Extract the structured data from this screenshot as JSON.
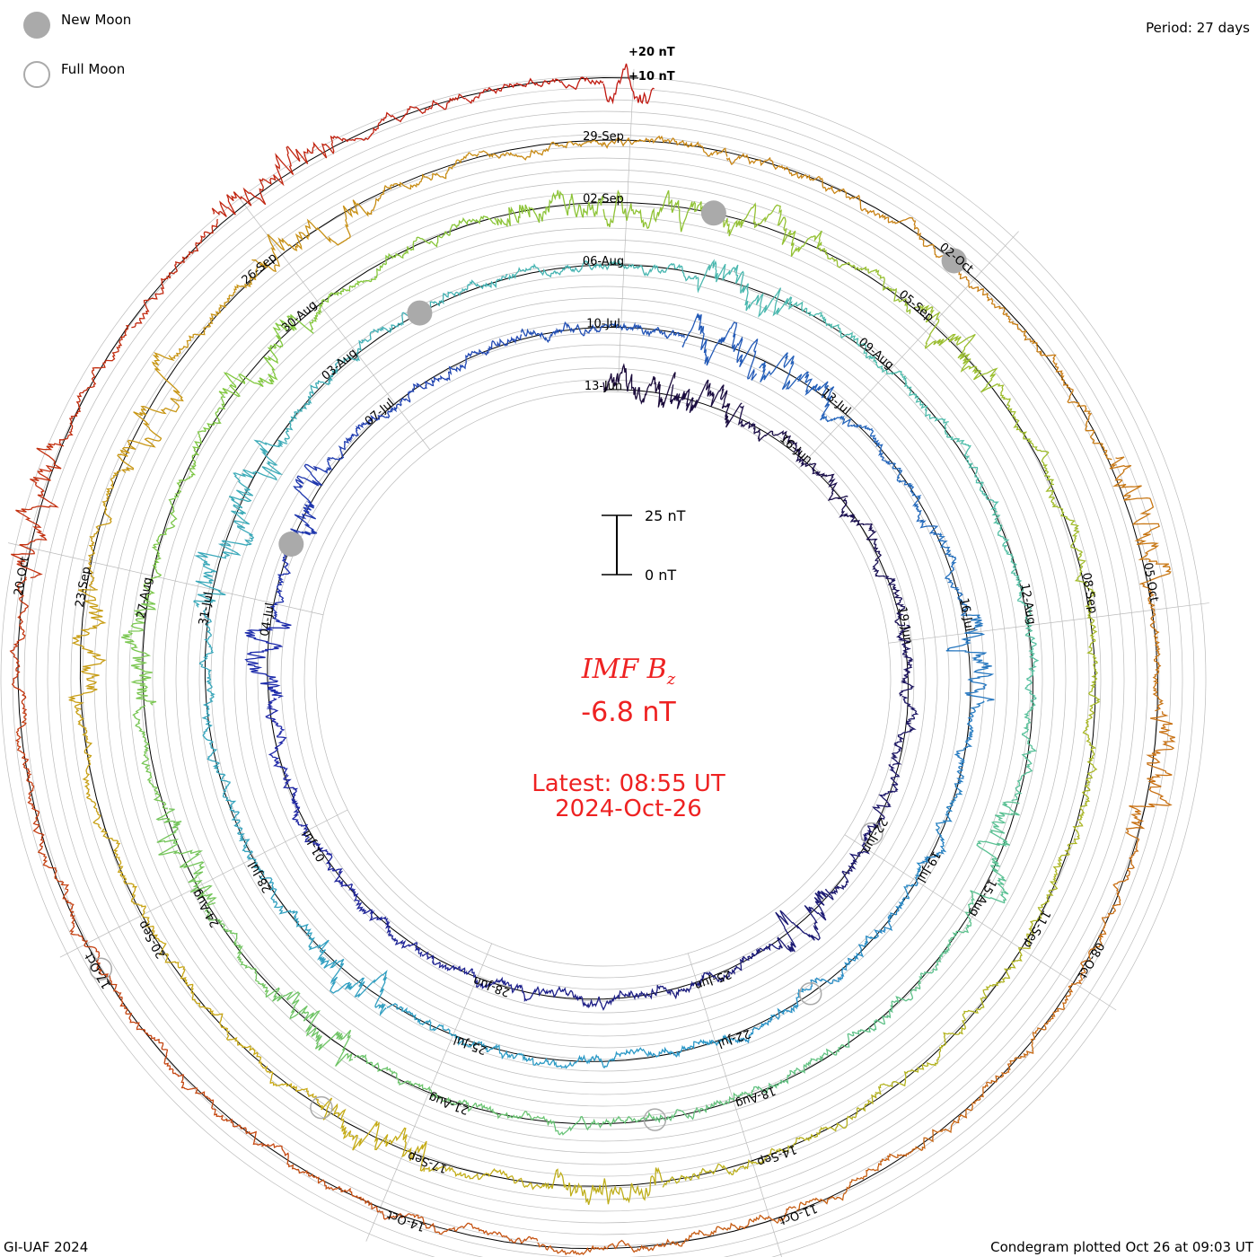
{
  "legend": {
    "new_moon_label": "New Moon",
    "full_moon_label": "Full Moon"
  },
  "header": {
    "period": "Period: 27 days"
  },
  "footer": {
    "left": "GI-UAF 2024",
    "right": "Condegram plotted Oct 26 at 09:03 UT"
  },
  "center": {
    "title_main": "IMF B",
    "title_sub": "z",
    "value": "-6.8 nT",
    "latest": "Latest: 08:55 UT",
    "date": "2024-Oct-26"
  },
  "chart_data": {
    "type": "line",
    "layout": "spiral condegram",
    "period_days": 27,
    "scale_bar": {
      "top_label": "25 nT",
      "bottom_label": "0 nT",
      "span_nT": 25
    },
    "ring_labels": [
      "+20 nT",
      "+10 nT"
    ],
    "start_date": "2024-06-13",
    "end_date": "2024-10-26",
    "date_labels": [
      "13-Jun",
      "16-Jun",
      "19-Jun",
      "22-Jun",
      "25-Jun",
      "28-Jun",
      "01-Jul",
      "04-Jul",
      "07-Jul",
      "10-Jul",
      "13-Jul",
      "16-Jul",
      "19-Jul",
      "22-Jul",
      "25-Jul",
      "28-Jul",
      "31-Jul",
      "03-Aug",
      "06-Aug",
      "09-Aug",
      "12-Aug",
      "15-Aug",
      "18-Aug",
      "21-Aug",
      "24-Aug",
      "27-Aug",
      "30-Aug",
      "02-Sep",
      "05-Sep",
      "08-Sep",
      "11-Sep",
      "14-Sep",
      "17-Sep",
      "20-Sep",
      "23-Sep",
      "26-Sep",
      "29-Sep",
      "02-Oct",
      "05-Oct",
      "08-Oct",
      "11-Oct",
      "14-Oct",
      "17-Oct",
      "20-Oct"
    ],
    "series": [
      {
        "name": "IMF Bz",
        "latest_value": -6.8,
        "unit": "nT"
      }
    ],
    "new_moon_dates": [
      "2024-07-05",
      "2024-08-04",
      "2024-09-03",
      "2024-10-02"
    ],
    "full_moon_dates": [
      "2024-06-22",
      "2024-07-21",
      "2024-08-19",
      "2024-09-18",
      "2024-10-17"
    ],
    "colors": {
      "start": "#1a0a3a",
      "end": "#c0150f",
      "grid": "#bbbbbb",
      "moon": "#aaaaaa",
      "accent": "#ee2222"
    }
  }
}
